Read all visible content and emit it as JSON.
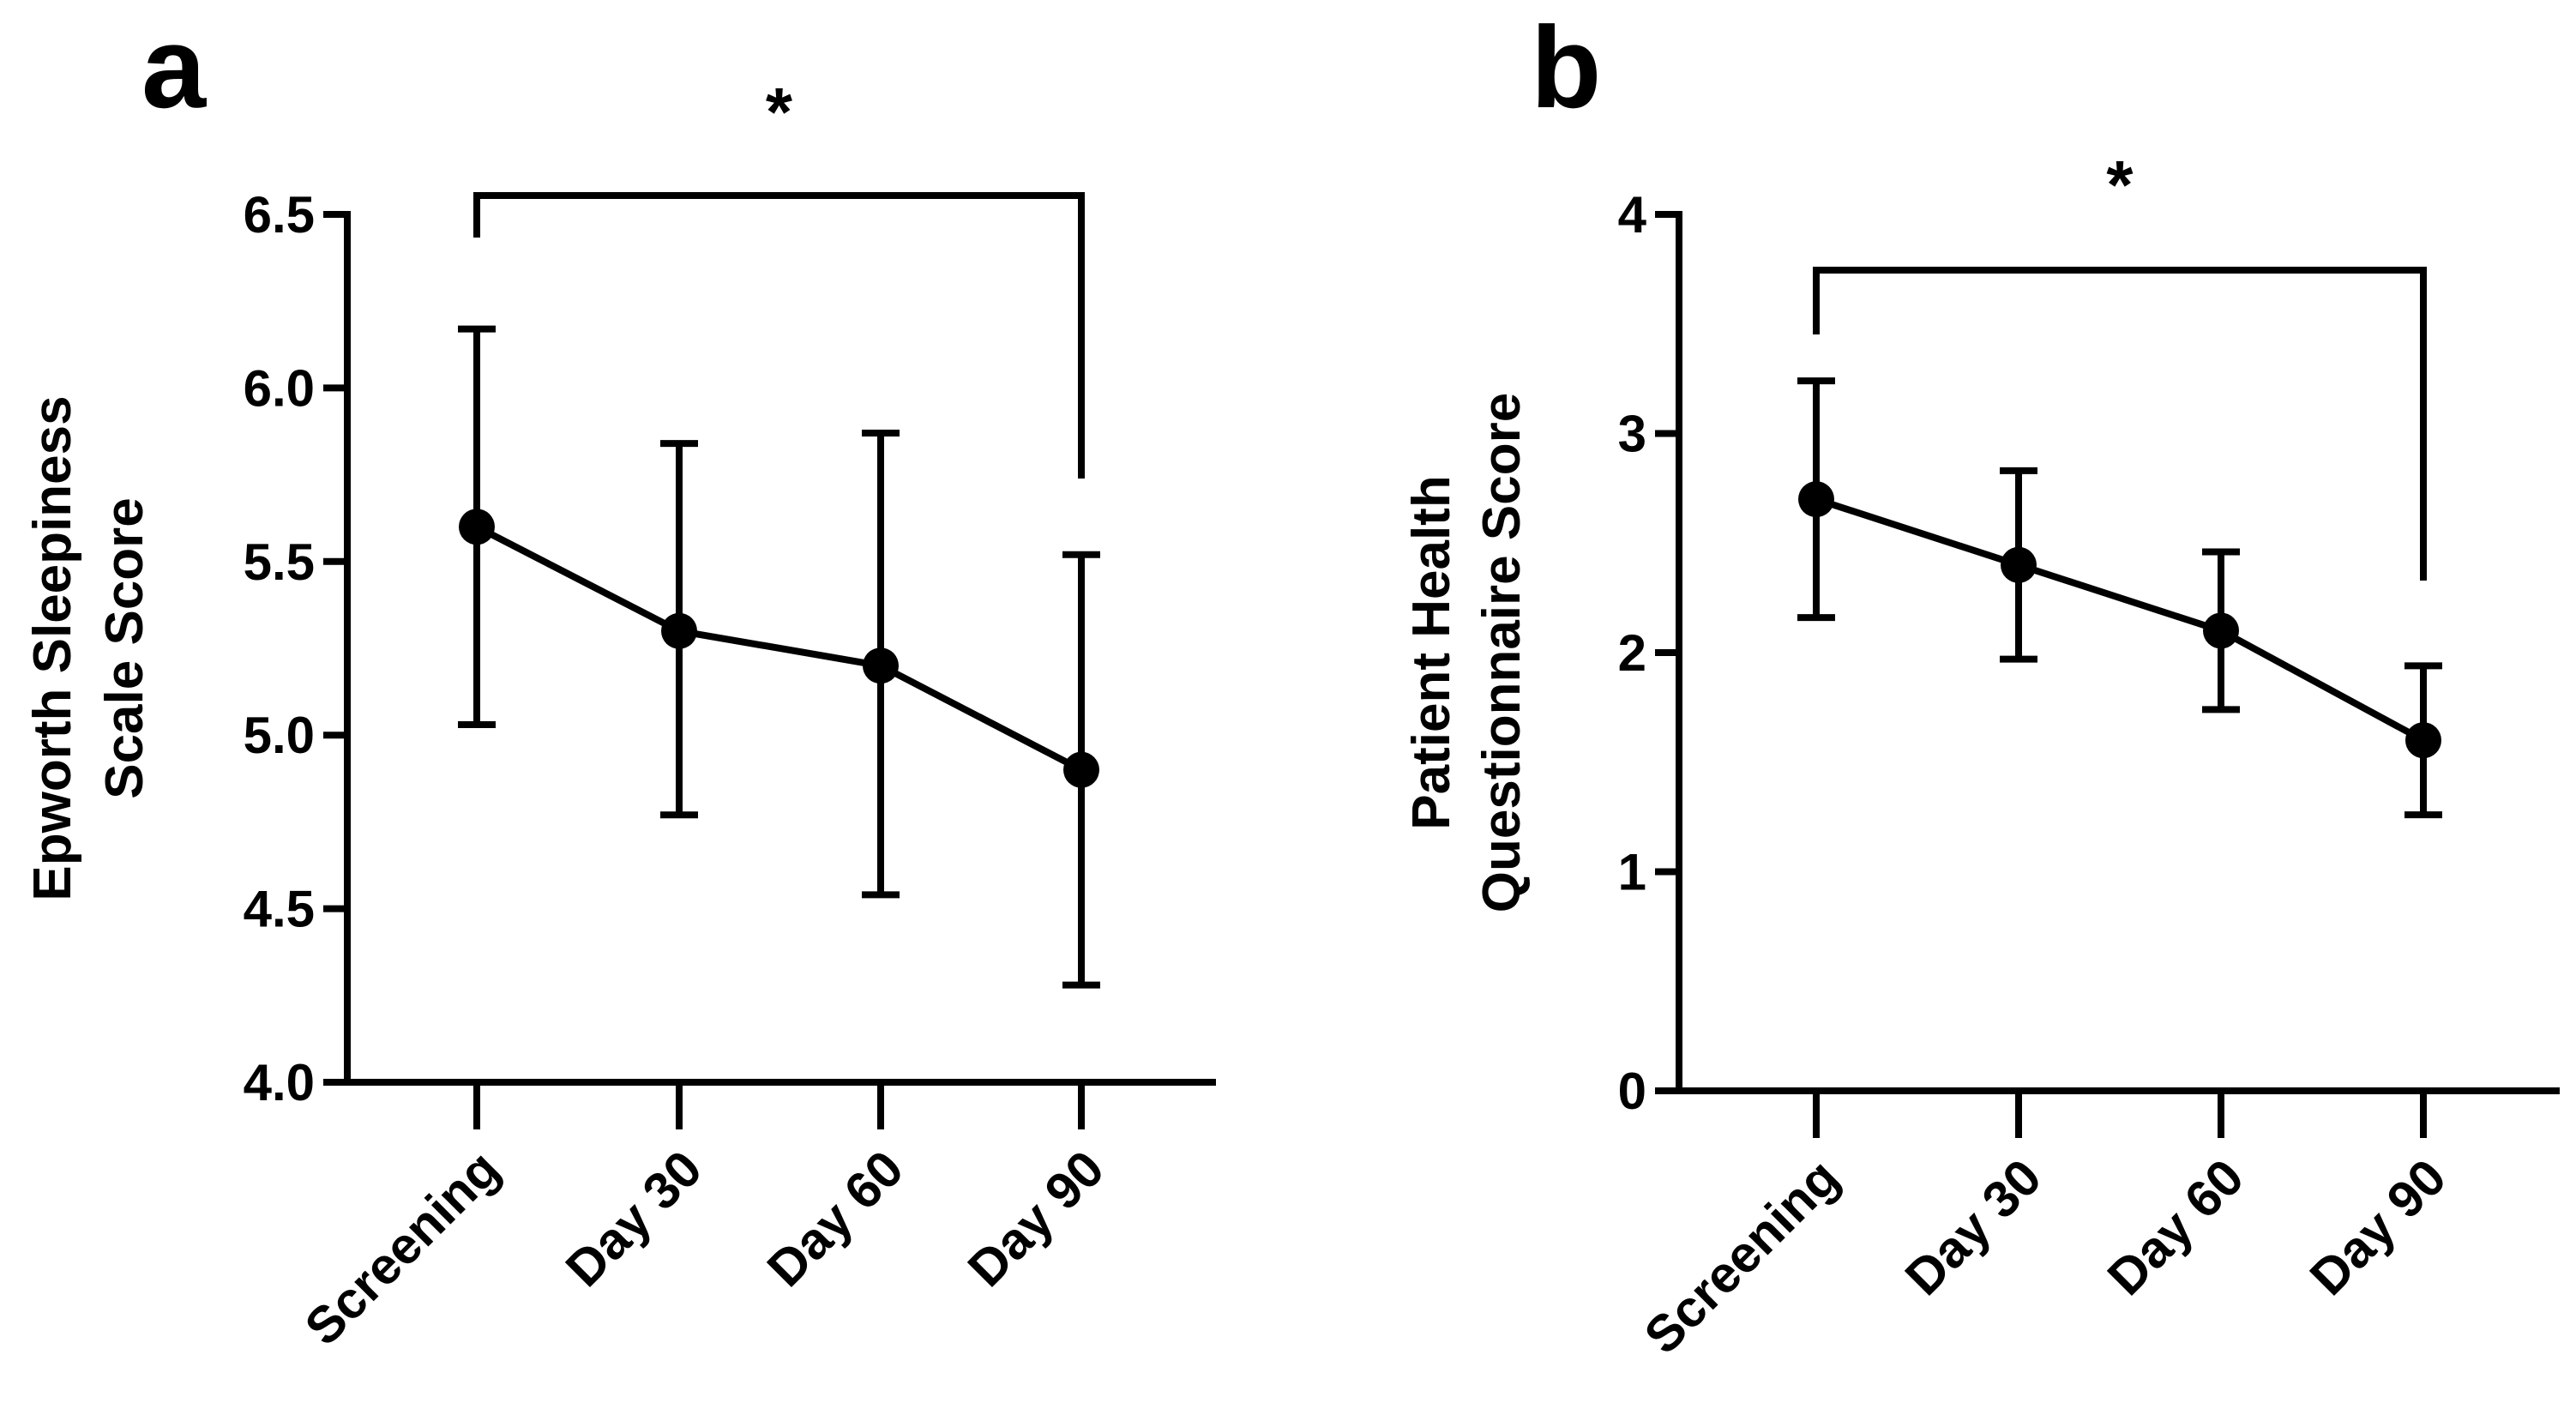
{
  "chart_data": [
    {
      "type": "line",
      "panel_label": "a",
      "title": "",
      "categories": [
        "Screening",
        "Day 30",
        "Day 60",
        "Day 90"
      ],
      "series": [
        {
          "name": "Epworth Sleepiness Scale Score",
          "values": [
            5.6,
            5.3,
            5.2,
            4.9
          ],
          "error_low": [
            5.03,
            4.77,
            4.54,
            4.28
          ],
          "error_high": [
            6.17,
            5.84,
            5.87,
            5.52
          ]
        }
      ],
      "xlabel": "",
      "ylabel_lines": [
        "Epworth Sleepiness",
        "Scale Score"
      ],
      "ylim": [
        4.0,
        6.5
      ],
      "yticks": [
        4.0,
        4.5,
        5.0,
        5.5,
        6.0,
        6.5
      ],
      "ytick_labels": [
        "4.0",
        "4.5",
        "5.0",
        "5.5",
        "6.0",
        "6.5"
      ],
      "grid": false,
      "significance": {
        "from": "Screening",
        "to": "Day 90",
        "label": "*"
      }
    },
    {
      "type": "line",
      "panel_label": "b",
      "title": "",
      "categories": [
        "Screening",
        "Day 30",
        "Day 60",
        "Day 90"
      ],
      "series": [
        {
          "name": "Patient Health Questionnaire Score",
          "values": [
            2.7,
            2.4,
            2.1,
            1.6
          ],
          "error_low": [
            2.16,
            1.97,
            1.74,
            1.26
          ],
          "error_high": [
            3.24,
            2.83,
            2.46,
            1.94
          ]
        }
      ],
      "xlabel": "",
      "ylabel_lines": [
        "Patient Health",
        "Questionnaire Score"
      ],
      "ylim": [
        0,
        4
      ],
      "yticks": [
        0,
        1,
        2,
        3,
        4
      ],
      "ytick_labels": [
        "0",
        "1",
        "2",
        "3",
        "4"
      ],
      "grid": false,
      "significance": {
        "from": "Screening",
        "to": "Day 90",
        "label": "*"
      }
    }
  ]
}
